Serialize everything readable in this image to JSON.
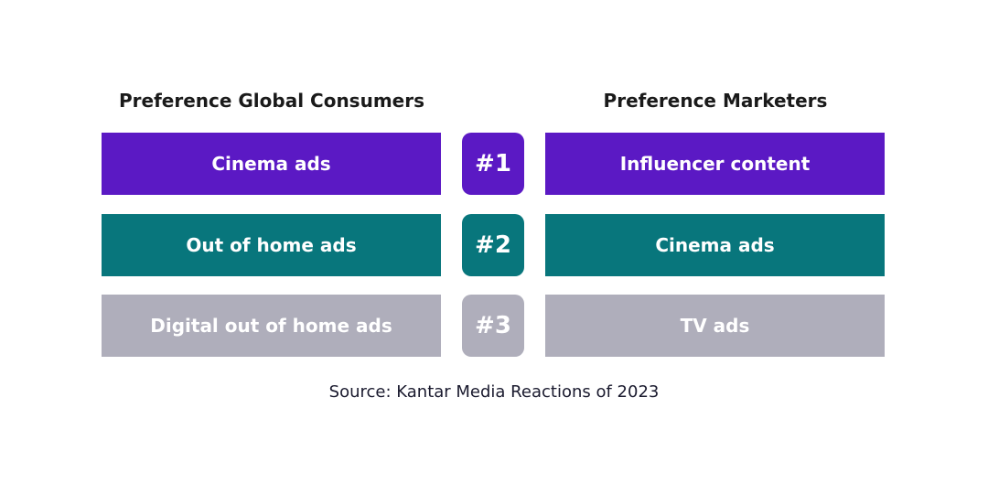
{
  "colors": {
    "rank1": "#5b19c4",
    "rank2": "#08767c",
    "rank3": "#afaebb"
  },
  "consumers": {
    "title": "Preference Global Consumers",
    "items": [
      "Cinema ads",
      "Out of home ads",
      "Digital out of home ads"
    ]
  },
  "ranks": [
    "#1",
    "#2",
    "#3"
  ],
  "marketers": {
    "title": "Preference Marketers",
    "items": [
      "Influencer content",
      "Cinema ads",
      "TV ads"
    ]
  },
  "source": "Source: Kantar Media Reactions of 2023"
}
